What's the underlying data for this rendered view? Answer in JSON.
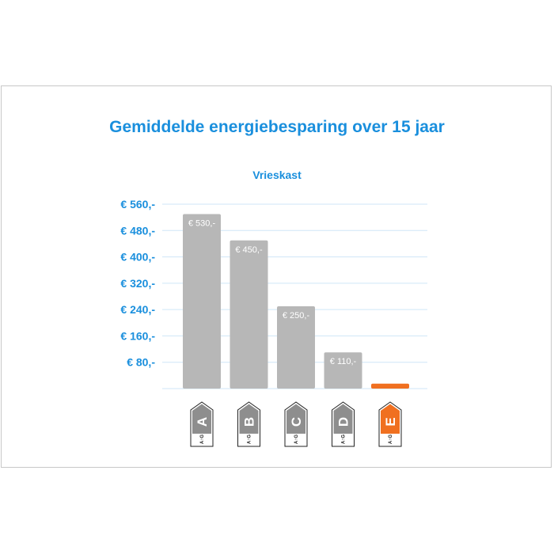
{
  "chart_data": {
    "type": "bar",
    "title": "Gemiddelde energiebesparing over 15 jaar",
    "subtitle": "Vrieskast",
    "categories": [
      "A",
      "B",
      "C",
      "D",
      "E"
    ],
    "values": [
      530,
      450,
      250,
      110,
      15
    ],
    "data_labels": [
      "€ 530,-",
      "€ 450,-",
      "€ 250,-",
      "€ 110,-",
      ""
    ],
    "ylim": [
      0,
      560
    ],
    "yticks": [
      80,
      160,
      240,
      320,
      400,
      480,
      560
    ],
    "ytick_labels": [
      "€ 80,-",
      "€ 160,-",
      "€ 240,-",
      "€ 320,-",
      "€ 400,-",
      "€ 480,-",
      "€ 560,-"
    ],
    "grid": true,
    "legend": "none",
    "label_scale_text": "A↑G",
    "colors": {
      "bar": "#b7b7b7",
      "highlight": "#f07020",
      "accent": "#1a8fdd",
      "grid": "#cfe6f7",
      "label_fill": "#8e8e8e"
    },
    "highlight_category": "E"
  }
}
